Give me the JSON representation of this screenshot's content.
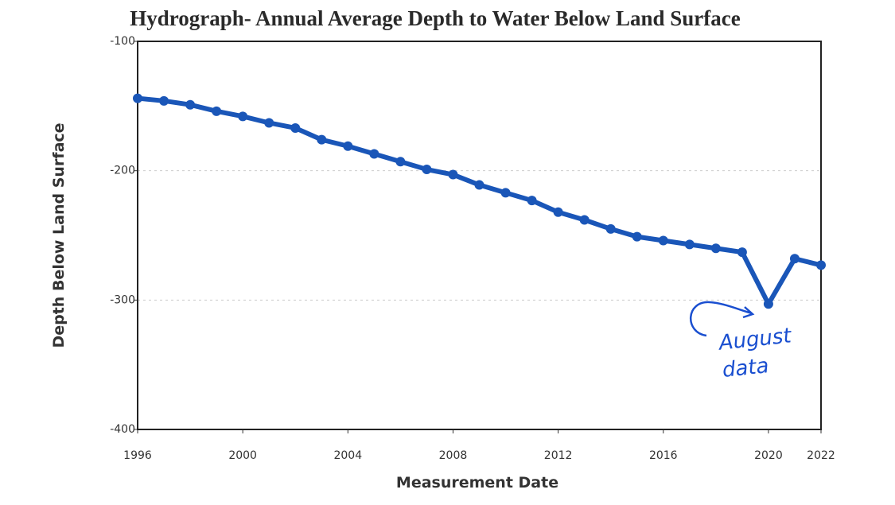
{
  "chart_data": {
    "type": "line",
    "title": "Hydrograph- Annual Average Depth to Water Below Land Surface",
    "x_label": "Measurement Date",
    "y_label": "Depth Below Land Surface",
    "x": [
      1996,
      1997,
      1998,
      1999,
      2000,
      2001,
      2002,
      2003,
      2004,
      2005,
      2006,
      2007,
      2008,
      2009,
      2010,
      2011,
      2012,
      2013,
      2014,
      2015,
      2016,
      2017,
      2018,
      2019,
      2020,
      2021,
      2022
    ],
    "series": [
      {
        "color": "#1a56b8",
        "values": [
          -144,
          -146,
          -149,
          -154,
          -158,
          -163,
          -167,
          -176,
          -181,
          -187,
          -193,
          -199,
          -203,
          -211,
          -217,
          -223,
          -232,
          -238,
          -245,
          -251,
          -254,
          -257,
          -260,
          -263,
          -303,
          -268,
          -273
        ]
      }
    ],
    "xlim": [
      1996,
      2022
    ],
    "xticks": [
      1996,
      2000,
      2004,
      2008,
      2012,
      2016,
      2020,
      2022
    ],
    "ylim": [
      -400,
      -100
    ],
    "yticks": [
      -100,
      -200,
      -300,
      -400
    ],
    "grid": true,
    "annotation": [
      "August",
      "data"
    ],
    "annotation_color": "#1a4fd0"
  }
}
